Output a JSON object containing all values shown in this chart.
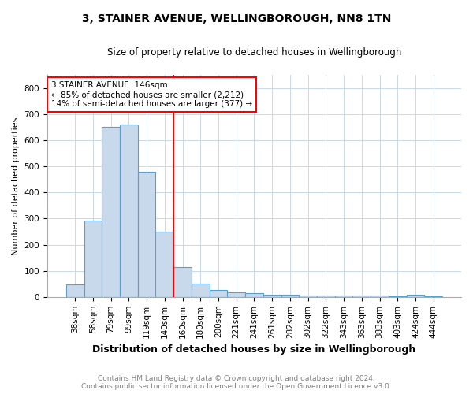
{
  "title": "3, STAINER AVENUE, WELLINGBOROUGH, NN8 1TN",
  "subtitle": "Size of property relative to detached houses in Wellingborough",
  "xlabel": "Distribution of detached houses by size in Wellingborough",
  "ylabel": "Number of detached properties",
  "footer_line1": "Contains HM Land Registry data © Crown copyright and database right 2024.",
  "footer_line2": "Contains public sector information licensed under the Open Government Licence v3.0.",
  "categories": [
    "38sqm",
    "58sqm",
    "79sqm",
    "99sqm",
    "119sqm",
    "140sqm",
    "160sqm",
    "180sqm",
    "200sqm",
    "221sqm",
    "241sqm",
    "261sqm",
    "282sqm",
    "302sqm",
    "322sqm",
    "343sqm",
    "363sqm",
    "383sqm",
    "403sqm",
    "424sqm",
    "444sqm"
  ],
  "values": [
    48,
    293,
    650,
    660,
    480,
    250,
    113,
    50,
    27,
    17,
    14,
    8,
    7,
    6,
    6,
    5,
    5,
    4,
    2,
    9,
    2
  ],
  "bar_color": "#c8d9eb",
  "bar_edge_color": "#5a9ec9",
  "vline_x": 5.5,
  "vline_color": "red",
  "annotation_line1": "3 STAINER AVENUE: 146sqm",
  "annotation_line2": "← 85% of detached houses are smaller (2,212)",
  "annotation_line3": "14% of semi-detached houses are larger (377) →",
  "annotation_box_color": "white",
  "annotation_box_edge_color": "red",
  "ylim": [
    0,
    850
  ],
  "yticks": [
    0,
    100,
    200,
    300,
    400,
    500,
    600,
    700,
    800
  ],
  "background_color": "white",
  "grid_color": "#c8d9eb",
  "title_fontsize": 10,
  "subtitle_fontsize": 8.5,
  "ylabel_fontsize": 8,
  "xlabel_fontsize": 9,
  "tick_fontsize": 7.5,
  "footer_fontsize": 6.5
}
